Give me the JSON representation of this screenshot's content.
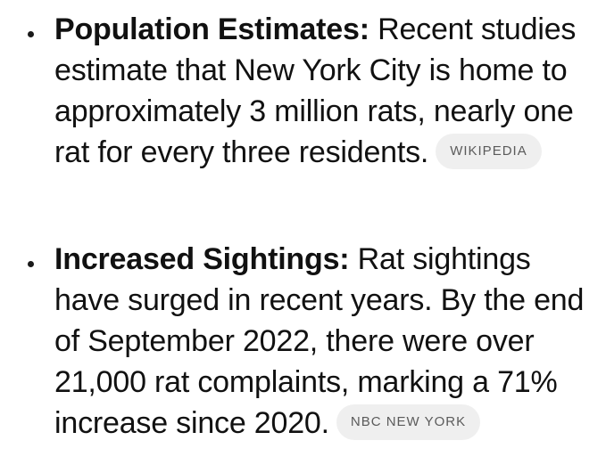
{
  "items": [
    {
      "label": "Population Estimates:",
      "text": " Recent studies estimate that New York City is home to approximately 3 million rats, nearly one rat for every three residents.",
      "source": "WIKIPEDIA"
    },
    {
      "label": "Increased Sightings:",
      "text": " Rat sightings have surged in recent years. By the end of September 2022, there were over 21,000 rat complaints, marking a 71% increase since 2020.",
      "source": "NBC NEW YORK"
    }
  ]
}
